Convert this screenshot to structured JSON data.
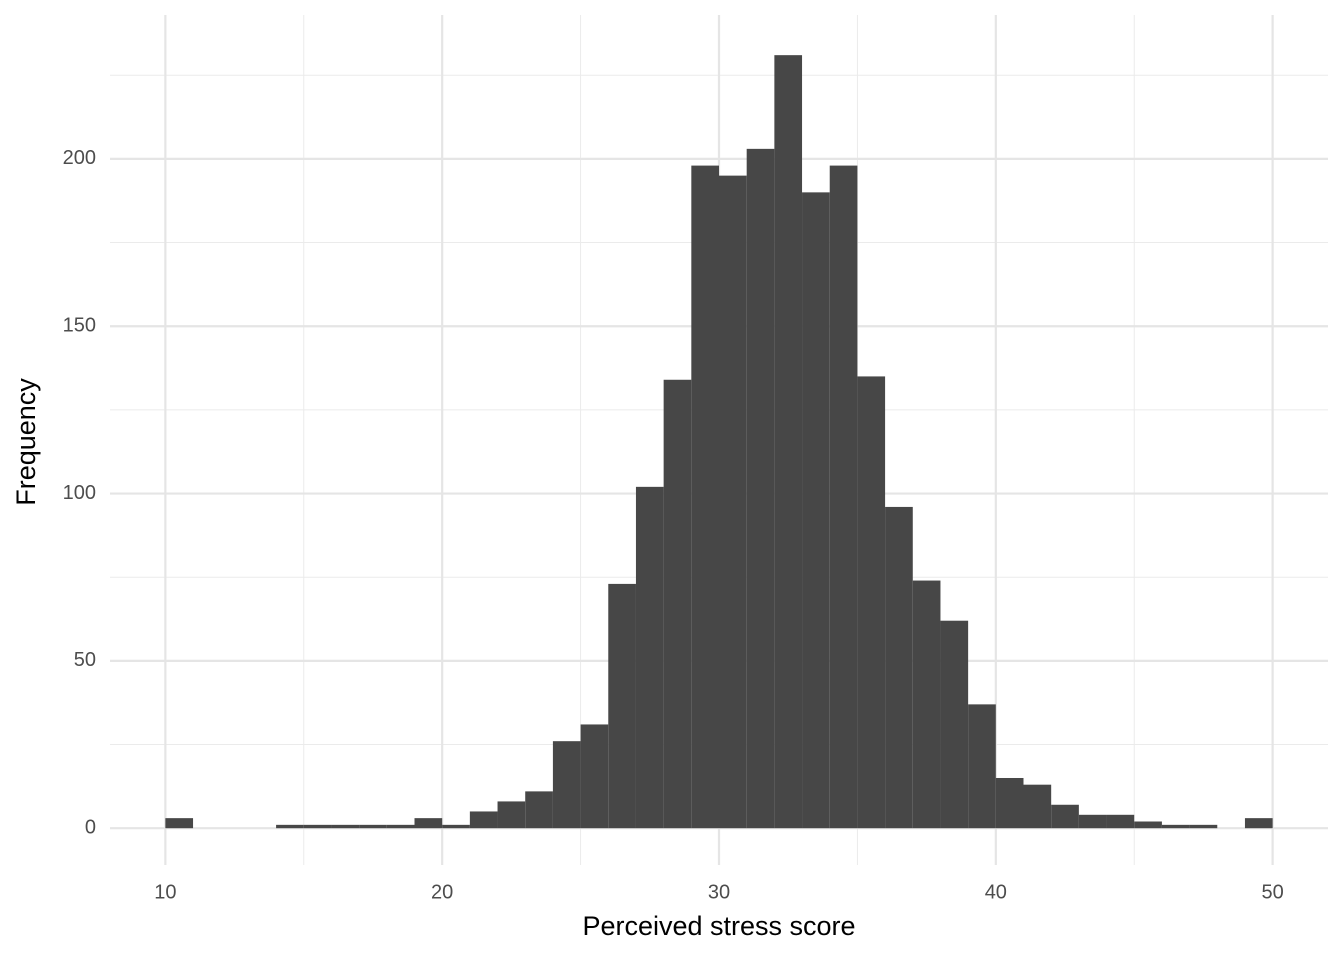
{
  "chart_data": {
    "type": "histogram",
    "x_label": "Perceived stress score",
    "y_label": "Frequency",
    "bins": [
      10,
      11,
      12,
      13,
      14,
      15,
      16,
      17,
      18,
      19,
      20,
      21,
      22,
      23,
      24,
      25,
      26,
      27,
      28,
      29,
      30,
      31,
      32,
      33,
      34,
      35,
      36,
      37,
      38,
      39,
      40,
      41,
      42,
      43,
      44,
      45,
      46,
      47,
      48,
      49,
      50
    ],
    "counts": [
      3,
      0,
      0,
      0,
      1,
      1,
      1,
      1,
      1,
      3,
      1,
      5,
      8,
      11,
      26,
      31,
      73,
      102,
      134,
      198,
      195,
      203,
      231,
      190,
      198,
      135,
      96,
      74,
      62,
      37,
      15,
      13,
      7,
      4,
      4,
      2,
      1,
      1,
      0,
      3
    ],
    "color": "#474747",
    "xlim": [
      8,
      52
    ],
    "ylim": [
      -11,
      243
    ],
    "xticks": [
      10,
      20,
      30,
      40,
      50
    ],
    "yticks": [
      0,
      50,
      100,
      150,
      200
    ],
    "x_minor_grid": [
      15,
      25,
      35,
      45
    ],
    "y_minor_grid": [
      25,
      75,
      125,
      175,
      225
    ],
    "grid": true
  }
}
